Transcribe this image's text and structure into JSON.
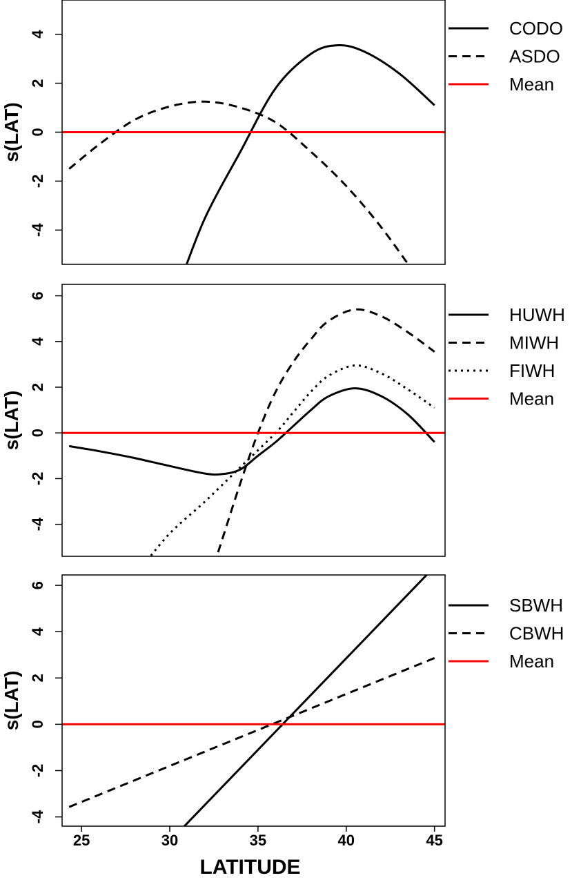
{
  "chart_data": [
    {
      "type": "line",
      "ylabel": "s(LAT)",
      "xlabel": "",
      "xlim": [
        23.9,
        45.6
      ],
      "ylim": [
        -5.4,
        5.4
      ],
      "yticks": [
        -4,
        -2,
        0,
        2,
        4
      ],
      "xticks": [],
      "legend_placement": "right-outside",
      "series": [
        {
          "name": "CODO",
          "style": "solid",
          "color": "#000000",
          "x": [
            30.5,
            32,
            34,
            36,
            38,
            39.5,
            41,
            43,
            45
          ],
          "y": [
            -6.3,
            -3.5,
            -0.8,
            1.8,
            3.2,
            3.55,
            3.3,
            2.4,
            1.1
          ]
        },
        {
          "name": "ASDO",
          "style": "dashed",
          "color": "#000000",
          "x": [
            24.3,
            26,
            28,
            30,
            32,
            34,
            36,
            38,
            40,
            42,
            44
          ],
          "y": [
            -1.5,
            -0.5,
            0.5,
            1.05,
            1.25,
            1.0,
            0.4,
            -0.8,
            -2.2,
            -3.9,
            -5.9
          ]
        },
        {
          "name": "Mean",
          "style": "solid",
          "color": "#ff0000",
          "x": [
            23.9,
            45.6
          ],
          "y": [
            0,
            0
          ]
        }
      ]
    },
    {
      "type": "line",
      "ylabel": "s(LAT)",
      "xlabel": "",
      "xlim": [
        23.9,
        45.6
      ],
      "ylim": [
        -5.4,
        6.5
      ],
      "yticks": [
        -4,
        -2,
        0,
        2,
        4,
        6
      ],
      "xticks": [],
      "legend_placement": "right-outside",
      "series": [
        {
          "name": "HUWH",
          "style": "solid",
          "color": "#000000",
          "x": [
            24.3,
            26,
            28,
            30,
            32,
            33,
            34,
            35,
            36,
            37,
            38,
            39,
            40.5,
            42,
            43.5,
            45
          ],
          "y": [
            -0.58,
            -0.8,
            -1.1,
            -1.45,
            -1.78,
            -1.8,
            -1.6,
            -1.0,
            -0.4,
            0.3,
            1.0,
            1.6,
            1.95,
            1.6,
            0.8,
            -0.4
          ]
        },
        {
          "name": "MIWH",
          "style": "dashed",
          "color": "#000000",
          "x": [
            32.5,
            33,
            34,
            35,
            36,
            37,
            38,
            39,
            40.5,
            42,
            43.5,
            45
          ],
          "y": [
            -5.8,
            -4.6,
            -2.2,
            0,
            1.8,
            3.1,
            4.1,
            4.9,
            5.4,
            5.1,
            4.4,
            3.55
          ]
        },
        {
          "name": "FIWH",
          "style": "dotted",
          "color": "#000000",
          "x": [
            28.5,
            30,
            32,
            34,
            36,
            37,
            38,
            39,
            40.5,
            42,
            43.5,
            45
          ],
          "y": [
            -5.8,
            -4.4,
            -3.0,
            -1.5,
            0,
            0.9,
            1.8,
            2.5,
            2.95,
            2.6,
            1.9,
            1.1
          ]
        },
        {
          "name": "Mean",
          "style": "solid",
          "color": "#ff0000",
          "x": [
            23.9,
            45.6
          ],
          "y": [
            0,
            0
          ]
        }
      ]
    },
    {
      "type": "line",
      "ylabel": "s(LAT)",
      "xlabel": "LATITUDE",
      "xlim": [
        23.9,
        45.6
      ],
      "ylim": [
        -4.4,
        6.45
      ],
      "yticks": [
        -4,
        -2,
        0,
        2,
        4,
        6
      ],
      "xticks": [
        25,
        30,
        35,
        40,
        45
      ],
      "legend_placement": "right-outside",
      "series": [
        {
          "name": "SBWH",
          "style": "solid",
          "color": "#000000",
          "x": [
            30.5,
            44.8
          ],
          "y": [
            -4.66,
            6.64
          ]
        },
        {
          "name": "CBWH",
          "style": "dashed",
          "color": "#000000",
          "x": [
            24.3,
            45
          ],
          "y": [
            -3.57,
            2.86
          ]
        },
        {
          "name": "Mean",
          "style": "solid",
          "color": "#ff0000",
          "x": [
            23.9,
            45.6
          ],
          "y": [
            0,
            0
          ]
        }
      ]
    }
  ]
}
